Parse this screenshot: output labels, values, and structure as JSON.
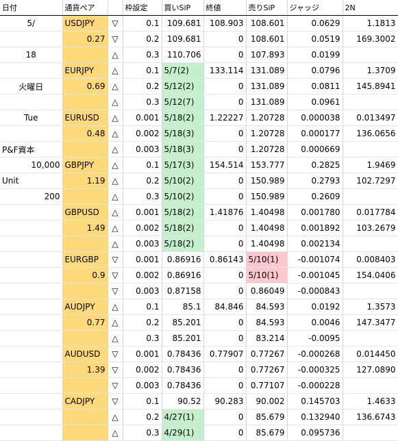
{
  "headers": [
    "日付",
    "通貨ペア",
    "",
    "枠設定",
    "買いSiP",
    "終値",
    "売りSiP",
    "ジャッジ",
    "2N"
  ],
  "left": {
    "month": "5/",
    "day": "18",
    "weekday_ja": "火曜日",
    "weekday_en": "Tue",
    "capital_label": "P&F資本",
    "capital_value": "10,000",
    "unit_label": "Unit",
    "unit_value": "200"
  },
  "groups": [
    {
      "pair": "USDJPY",
      "vol": "0.27",
      "rows": [
        {
          "arrow": "▽",
          "frame": "0.1",
          "buy": "109.681",
          "buy_hl": "",
          "close": "108.903",
          "sell": "108.601",
          "sell_hl": "",
          "judge": "0.0629",
          "judge_neg": false,
          "n2": "1.1813"
        },
        {
          "arrow": "▽",
          "frame": "0.2",
          "buy": "109.681",
          "buy_hl": "",
          "close": "0",
          "sell": "108.601",
          "sell_hl": "",
          "judge": "0.0519",
          "judge_neg": false,
          "n2": "169.3002"
        },
        {
          "arrow": "△",
          "frame": "0.3",
          "buy": "110.706",
          "buy_hl": "",
          "close": "0",
          "sell": "107.893",
          "sell_hl": "",
          "judge": "0.0199",
          "judge_neg": false,
          "n2": ""
        }
      ]
    },
    {
      "pair": "EURJPY",
      "vol": "0.69",
      "rows": [
        {
          "arrow": "△",
          "frame": "0.1",
          "buy": "5/7(2)",
          "buy_hl": "green",
          "close": "133.114",
          "sell": "131.089",
          "sell_hl": "",
          "judge": "0.0796",
          "judge_neg": false,
          "n2": "1.3709"
        },
        {
          "arrow": "△",
          "frame": "0.2",
          "buy": "5/12(2)",
          "buy_hl": "green",
          "close": "0",
          "sell": "131.089",
          "sell_hl": "",
          "judge": "0.0811",
          "judge_neg": false,
          "n2": "145.8941"
        },
        {
          "arrow": "△",
          "frame": "0.3",
          "buy": "5/12(7)",
          "buy_hl": "green",
          "close": "0",
          "sell": "131.089",
          "sell_hl": "",
          "judge": "0.0961",
          "judge_neg": false,
          "n2": ""
        }
      ]
    },
    {
      "pair": "EURUSD",
      "vol": "0.48",
      "rows": [
        {
          "arrow": "△",
          "frame": "0.001",
          "buy": "5/18(2)",
          "buy_hl": "green",
          "close": "1.22227",
          "sell": "1.20728",
          "sell_hl": "",
          "judge": "0.000038",
          "judge_neg": false,
          "n2": "0.013497"
        },
        {
          "arrow": "△",
          "frame": "0.002",
          "buy": "5/18(3)",
          "buy_hl": "green",
          "close": "0",
          "sell": "1.20728",
          "sell_hl": "",
          "judge": "0.000177",
          "judge_neg": false,
          "n2": "136.0656"
        },
        {
          "arrow": "△",
          "frame": "0.003",
          "buy": "5/18(3)",
          "buy_hl": "green",
          "close": "0",
          "sell": "1.20728",
          "sell_hl": "",
          "judge": "0.000669",
          "judge_neg": false,
          "n2": ""
        }
      ]
    },
    {
      "pair": "GBPJPY",
      "vol": "1.19",
      "rows": [
        {
          "arrow": "△",
          "frame": "0.1",
          "buy": "5/17(3)",
          "buy_hl": "green",
          "close": "154.514",
          "sell": "153.777",
          "sell_hl": "",
          "judge": "0.2825",
          "judge_neg": false,
          "n2": "1.9469"
        },
        {
          "arrow": "△",
          "frame": "0.2",
          "buy": "5/10(2)",
          "buy_hl": "green",
          "close": "0",
          "sell": "150.989",
          "sell_hl": "",
          "judge": "0.2793",
          "judge_neg": false,
          "n2": "102.7297"
        },
        {
          "arrow": "△",
          "frame": "0.3",
          "buy": "5/10(2)",
          "buy_hl": "green",
          "close": "0",
          "sell": "150.989",
          "sell_hl": "",
          "judge": "0.2609",
          "judge_neg": false,
          "n2": ""
        }
      ]
    },
    {
      "pair": "GBPUSD",
      "vol": "1.49",
      "rows": [
        {
          "arrow": "△",
          "frame": "0.001",
          "buy": "5/18(2)",
          "buy_hl": "green",
          "close": "1.41876",
          "sell": "1.40498",
          "sell_hl": "",
          "judge": "0.001780",
          "judge_neg": false,
          "n2": "0.017784"
        },
        {
          "arrow": "△",
          "frame": "0.002",
          "buy": "5/18(2)",
          "buy_hl": "green",
          "close": "0",
          "sell": "1.40498",
          "sell_hl": "",
          "judge": "0.001892",
          "judge_neg": false,
          "n2": "103.2679"
        },
        {
          "arrow": "△",
          "frame": "0.003",
          "buy": "5/18(2)",
          "buy_hl": "green",
          "close": "0",
          "sell": "1.40498",
          "sell_hl": "",
          "judge": "0.002134",
          "judge_neg": false,
          "n2": ""
        }
      ]
    },
    {
      "pair": "EURGBP",
      "vol": "0.9",
      "rows": [
        {
          "arrow": "▽",
          "frame": "0.001",
          "buy": "0.86916",
          "buy_hl": "",
          "close": "0.86143",
          "sell": "5/10(1)",
          "sell_hl": "red",
          "judge": "-0.001074",
          "judge_neg": true,
          "n2": "0.008403"
        },
        {
          "arrow": "▽",
          "frame": "0.002",
          "buy": "0.86916",
          "buy_hl": "",
          "close": "0",
          "sell": "5/10(1)",
          "sell_hl": "red",
          "judge": "-0.001045",
          "judge_neg": true,
          "n2": "154.0406"
        },
        {
          "arrow": "▽",
          "frame": "0.003",
          "buy": "0.87158",
          "buy_hl": "",
          "close": "0",
          "sell": "0.86049",
          "sell_hl": "",
          "judge": "-0.000843",
          "judge_neg": true,
          "n2": ""
        }
      ]
    },
    {
      "pair": "AUDJPY",
      "vol": "0.77",
      "rows": [
        {
          "arrow": "△",
          "frame": "0.1",
          "buy": "85.1",
          "buy_hl": "",
          "close": "84.846",
          "sell": "84.593",
          "sell_hl": "",
          "judge": "0.0192",
          "judge_neg": false,
          "n2": "1.3573"
        },
        {
          "arrow": "△",
          "frame": "0.2",
          "buy": "85.201",
          "buy_hl": "",
          "close": "0",
          "sell": "84.593",
          "sell_hl": "",
          "judge": "0.0046",
          "judge_neg": false,
          "n2": "147.3477"
        },
        {
          "arrow": "△",
          "frame": "0.3",
          "buy": "85.201",
          "buy_hl": "",
          "close": "0",
          "sell": "83.214",
          "sell_hl": "",
          "judge": "-0.0095",
          "judge_neg": true,
          "n2": ""
        }
      ]
    },
    {
      "pair": "AUDUSD",
      "vol": "1.39",
      "rows": [
        {
          "arrow": "▽",
          "frame": "0.001",
          "buy": "0.78436",
          "buy_hl": "",
          "close": "0.77907",
          "sell": "0.77267",
          "sell_hl": "",
          "judge": "-0.000268",
          "judge_neg": true,
          "n2": "0.014450"
        },
        {
          "arrow": "▽",
          "frame": "0.002",
          "buy": "0.78436",
          "buy_hl": "",
          "close": "0",
          "sell": "0.77267",
          "sell_hl": "",
          "judge": "-0.000325",
          "judge_neg": true,
          "n2": "127.0890"
        },
        {
          "arrow": "▽",
          "frame": "0.003",
          "buy": "0.78436",
          "buy_hl": "",
          "close": "0",
          "sell": "0.77107",
          "sell_hl": "",
          "judge": "-0.000228",
          "judge_neg": true,
          "n2": ""
        }
      ]
    },
    {
      "pair": "CADJPY",
      "vol": "",
      "rows": [
        {
          "arrow": "▽",
          "frame": "0.1",
          "buy": "90.52",
          "buy_hl": "",
          "close": "90.283",
          "sell": "90.002",
          "sell_hl": "",
          "judge": "0.145703",
          "judge_neg": false,
          "n2": "1.4633"
        },
        {
          "arrow": "△",
          "frame": "0.2",
          "buy": "4/27(1)",
          "buy_hl": "green",
          "close": "0",
          "sell": "85.679",
          "sell_hl": "",
          "judge": "0.132940",
          "judge_neg": false,
          "n2": "136.6743"
        },
        {
          "arrow": "△",
          "frame": "0.3",
          "buy": "4/29(1)",
          "buy_hl": "green",
          "close": "0",
          "sell": "85.679",
          "sell_hl": "",
          "judge": "0.095736",
          "judge_neg": false,
          "n2": ""
        }
      ]
    }
  ],
  "colors": {
    "pair_bg": "#ffd97a",
    "buy_highlight": "#c6efce",
    "sell_highlight": "#ffc7ce",
    "negative": "#c0392b"
  }
}
